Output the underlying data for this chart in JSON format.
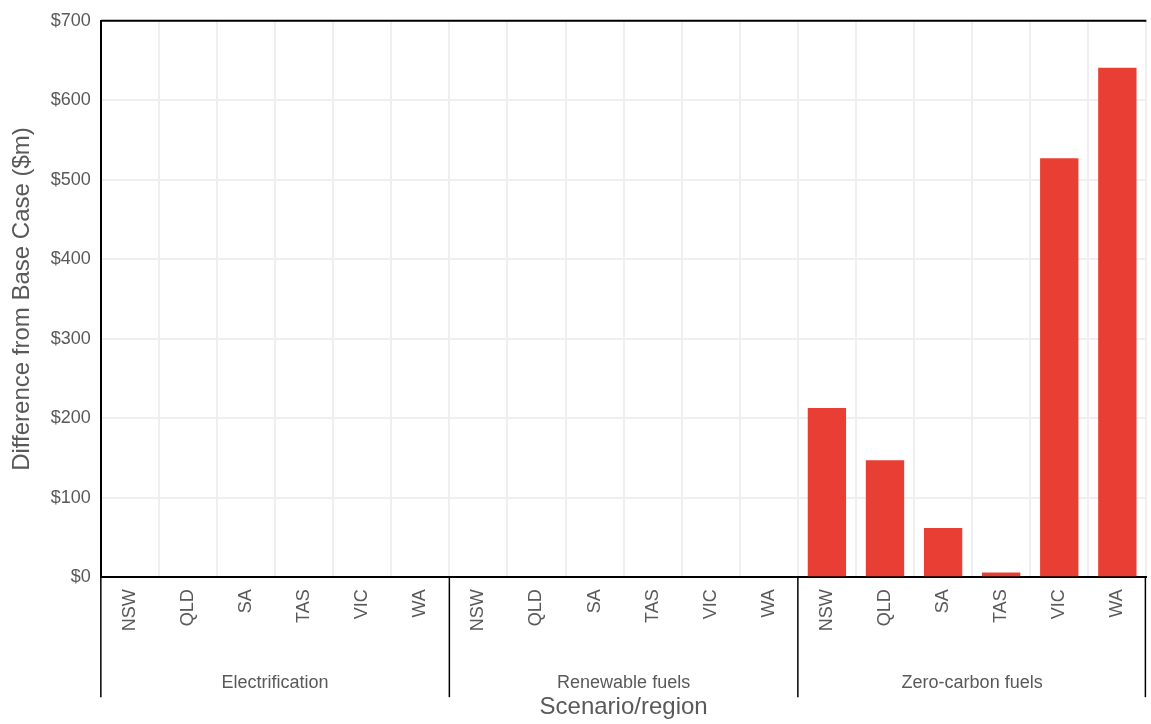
{
  "chart_data": {
    "type": "bar",
    "xlabel": "Scenario/region",
    "ylabel": "Difference from Base Case ($m)",
    "categories": [
      "NSW",
      "QLD",
      "SA",
      "TAS",
      "VIC",
      "WA",
      "NSW",
      "QLD",
      "SA",
      "TAS",
      "VIC",
      "WA",
      "NSW",
      "QLD",
      "SA",
      "TAS",
      "VIC",
      "WA"
    ],
    "values": [
      0,
      0,
      0,
      0,
      0,
      0,
      0,
      0,
      0,
      0,
      0,
      0,
      213,
      147,
      62,
      6,
      527,
      641
    ],
    "color": "#e83e33",
    "annotations": [
      "Electrification",
      "Renewable fuels",
      "Zero-carbon fuels"
    ],
    "ylim": [
      0,
      700
    ],
    "yticks": [
      {
        "value": 0,
        "label": "$0"
      },
      {
        "value": 100,
        "label": "$100"
      },
      {
        "value": 200,
        "label": "$200"
      },
      {
        "value": 300,
        "label": "$300"
      },
      {
        "value": 400,
        "label": "$400"
      },
      {
        "value": 500,
        "label": "$500"
      },
      {
        "value": 600,
        "label": "$600"
      },
      {
        "value": 700,
        "label": "$700"
      }
    ],
    "grid": true
  }
}
